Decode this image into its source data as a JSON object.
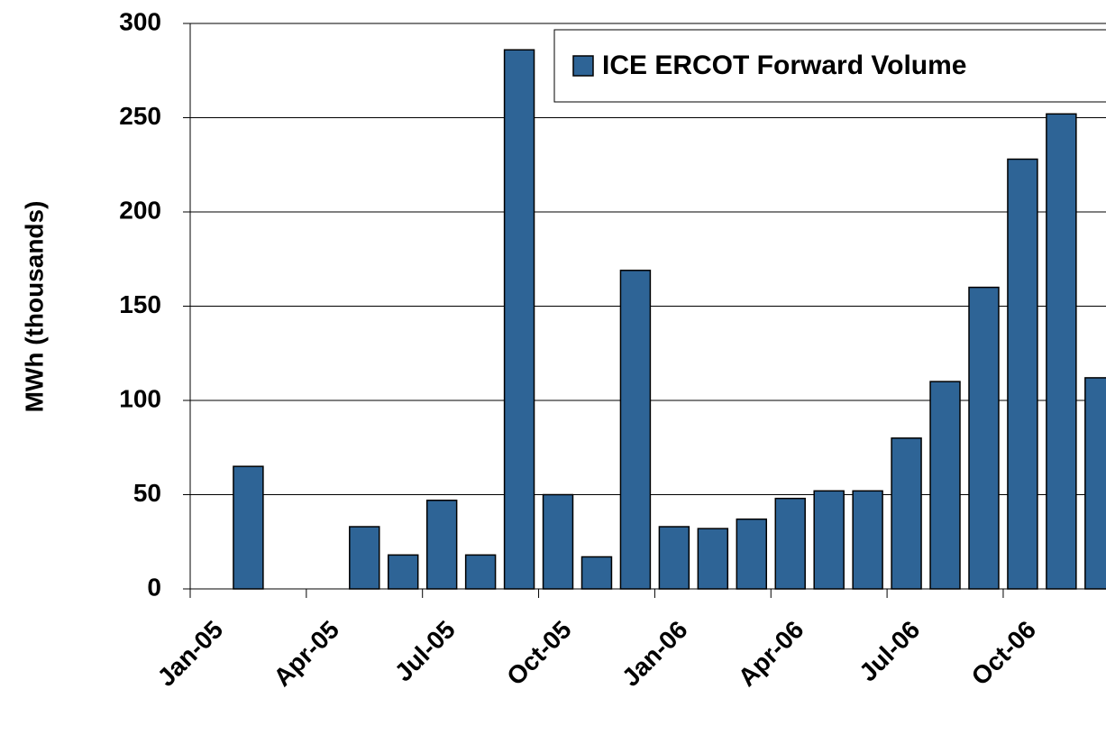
{
  "chart_data": {
    "type": "bar",
    "y_label": "MWh (thousands)",
    "categories": [
      "Jan-05",
      null,
      null,
      "Apr-05",
      null,
      null,
      "Jul-05",
      null,
      null,
      "Oct-05",
      null,
      null,
      "Jan-06",
      null,
      null,
      "Apr-06",
      null,
      null,
      "Jul-06",
      null,
      null,
      "Oct-06",
      null,
      null
    ],
    "series": [
      {
        "name": "ICE ERCOT Forward Volume",
        "color": "#2e6496",
        "values": [
          0,
          65,
          0,
          0,
          33,
          18,
          47,
          18,
          286,
          50,
          17,
          169,
          33,
          32,
          37,
          48,
          52,
          52,
          80,
          110,
          160,
          228,
          252,
          112
        ]
      }
    ],
    "ylim": [
      0,
      300
    ],
    "yticks": [
      0,
      50,
      100,
      150,
      200,
      250,
      300
    ],
    "grid": true,
    "legend": "top-right"
  }
}
